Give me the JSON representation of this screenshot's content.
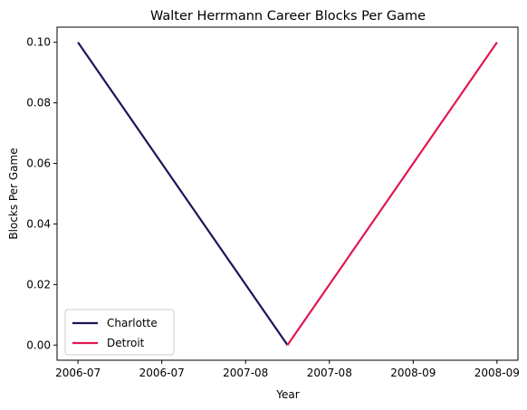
{
  "chart_data": {
    "type": "line",
    "title": "Walter Herrmann Career Blocks Per Game",
    "xlabel": "Year",
    "ylabel": "Blocks Per Game",
    "x_tick_labels": [
      "2006-07",
      "2006-07",
      "2007-08",
      "2007-08",
      "2008-09",
      "2008-09"
    ],
    "x_tick_positions": [
      0,
      0.4,
      0.8,
      1.2,
      1.6,
      2.0
    ],
    "xlim": [
      -0.1,
      2.1
    ],
    "ylim": [
      -0.005,
      0.105
    ],
    "y_ticks": [
      0.0,
      0.02,
      0.04,
      0.06,
      0.08,
      0.1
    ],
    "y_tick_labels": [
      "0.00",
      "0.02",
      "0.04",
      "0.06",
      "0.08",
      "0.10"
    ],
    "grid": false,
    "legend_position": "lower-left",
    "series": [
      {
        "name": "Charlotte",
        "color": "#1f1457",
        "x": [
          0,
          1
        ],
        "y": [
          0.1,
          0.0
        ]
      },
      {
        "name": "Detroit",
        "color": "#e0184f",
        "x": [
          1,
          2
        ],
        "y": [
          0.0,
          0.1
        ]
      }
    ]
  }
}
